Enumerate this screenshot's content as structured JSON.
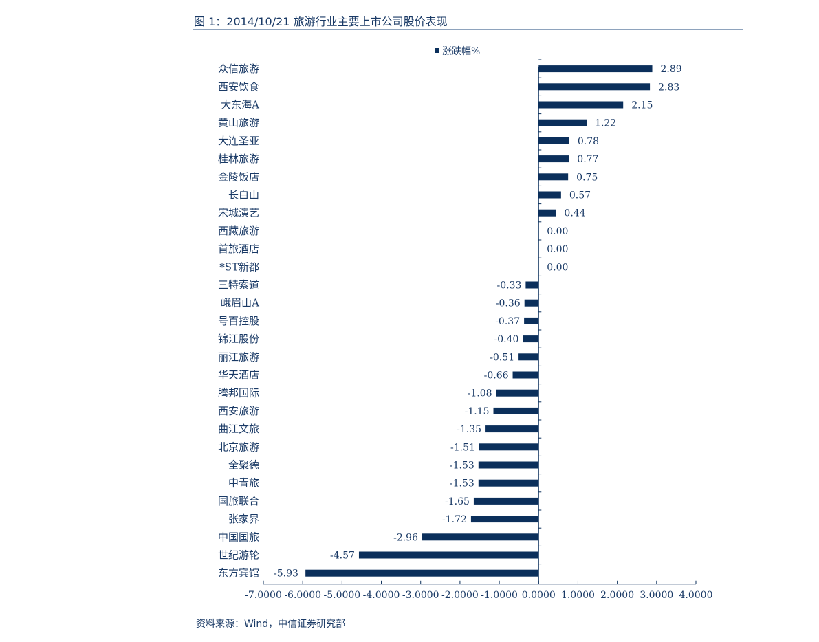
{
  "title": "图 1：2014/10/21 旅游行业主要上市公司股价表现",
  "source": "资料来源：Wind，中信证券研究部",
  "colors": {
    "bar": "#0b2f5b",
    "text": "#1a3a66",
    "axis": "#0b2f5b",
    "rule": "#8ea3bd"
  },
  "chart_data": {
    "type": "bar",
    "orientation": "horizontal",
    "legend": {
      "label": "涨跌幅%",
      "position": "top"
    },
    "categories": [
      "众信旅游",
      "西安饮食",
      "大东海A",
      "黄山旅游",
      "大连圣亚",
      "桂林旅游",
      "金陵饭店",
      "长白山",
      "宋城演艺",
      "西藏旅游",
      "首旅酒店",
      "*ST新都",
      "三特索道",
      "峨眉山A",
      "号百控股",
      "锦江股份",
      "丽江旅游",
      "华天酒店",
      "腾邦国际",
      "西安旅游",
      "曲江文旅",
      "北京旅游",
      "全聚德",
      "中青旅",
      "国旅联合",
      "张家界",
      "中国国旅",
      "世纪游轮",
      "东方宾馆"
    ],
    "series": [
      {
        "name": "涨跌幅%",
        "values": [
          2.89,
          2.83,
          2.15,
          1.22,
          0.78,
          0.77,
          0.75,
          0.57,
          0.44,
          0.0,
          0.0,
          0.0,
          -0.33,
          -0.36,
          -0.37,
          -0.4,
          -0.51,
          -0.66,
          -1.08,
          -1.15,
          -1.35,
          -1.51,
          -1.53,
          -1.53,
          -1.65,
          -1.72,
          -2.96,
          -4.57,
          -5.93
        ],
        "labels": [
          "2.89",
          "2.83",
          "2.15",
          "1.22",
          "0.78",
          "0.77",
          "0.75",
          "0.57",
          "0.44",
          "0.00",
          "0.00",
          "0.00",
          "-0.33",
          "-0.36",
          "-0.37",
          "-0.40",
          "-0.51",
          "-0.66",
          "-1.08",
          "-1.15",
          "-1.35",
          "-1.51",
          "-1.53",
          "-1.53",
          "-1.65",
          "-1.72",
          "-2.96",
          "-4.57",
          "-5.93"
        ]
      }
    ],
    "xlim": [
      -7,
      4
    ],
    "xticks": [
      -7,
      -6,
      -5,
      -4,
      -3,
      -2,
      -1,
      0,
      1,
      2,
      3,
      4
    ],
    "xtick_labels": [
      "-7.0000",
      "-6.0000",
      "-5.0000",
      "-4.0000",
      "-3.0000",
      "-2.0000",
      "-1.0000",
      "0.0000",
      "1.0000",
      "2.0000",
      "3.0000",
      "4.0000"
    ],
    "grid": false
  }
}
